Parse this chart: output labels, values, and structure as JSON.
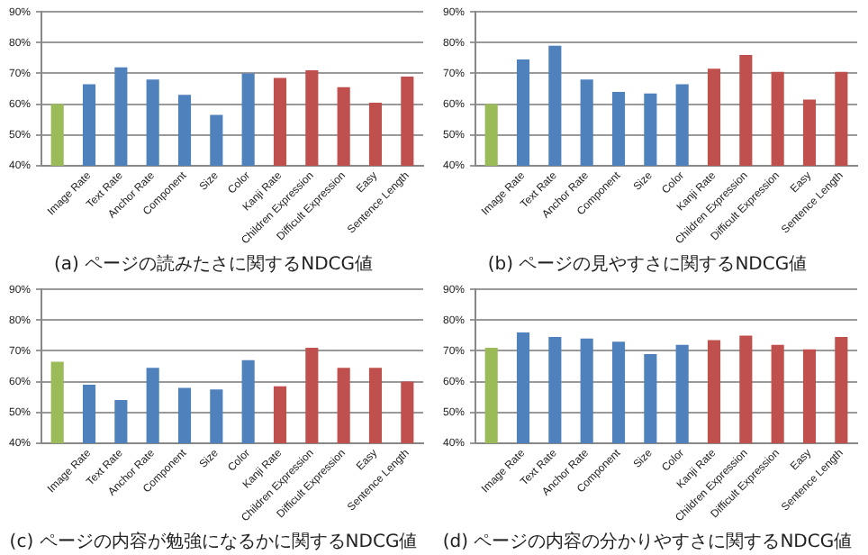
{
  "chart_data": [
    {
      "type": "bar",
      "title": "(a) ページの読みたさに関するNDCG値",
      "categories": [
        null,
        "Image Rate",
        "Text Rate",
        "Anchor Rate",
        "Component",
        "Size",
        "Color",
        "Kanji Rate",
        "Children Expression",
        "Difficult Expression",
        "Easy",
        "Sentence Length"
      ],
      "values": [
        60,
        66.5,
        72,
        68,
        63,
        56.5,
        70,
        68.5,
        71,
        65.5,
        60.5,
        69
      ],
      "colors": [
        "#9bbb59",
        "#4f81bd",
        "#4f81bd",
        "#4f81bd",
        "#4f81bd",
        "#4f81bd",
        "#4f81bd",
        "#c0504d",
        "#c0504d",
        "#c0504d",
        "#c0504d",
        "#c0504d"
      ],
      "ylim": [
        40,
        90
      ],
      "yticks": [
        {
          "value": 40,
          "label": "40%"
        },
        {
          "value": 50,
          "label": "50%"
        },
        {
          "value": 60,
          "label": "60%"
        },
        {
          "value": 70,
          "label": "70%"
        },
        {
          "value": 80,
          "label": "80%"
        },
        {
          "value": 90,
          "label": "90%"
        }
      ],
      "grid": "y",
      "legend": false
    },
    {
      "type": "bar",
      "title": "(b) ページの見やすさに関するNDCG値",
      "categories": [
        null,
        "Image Rate",
        "Text Rate",
        "Anchor Rate",
        "Component",
        "Size",
        "Color",
        "Kanji Rate",
        "Children Expression",
        "Difficult Expression",
        "Easy",
        "Sentence Length"
      ],
      "values": [
        60,
        74.5,
        79,
        68,
        64,
        63.5,
        66.5,
        71.5,
        76,
        70.5,
        61.5,
        70.5
      ],
      "colors": [
        "#9bbb59",
        "#4f81bd",
        "#4f81bd",
        "#4f81bd",
        "#4f81bd",
        "#4f81bd",
        "#4f81bd",
        "#c0504d",
        "#c0504d",
        "#c0504d",
        "#c0504d",
        "#c0504d"
      ],
      "ylim": [
        40,
        90
      ],
      "yticks": [
        {
          "value": 40,
          "label": "40%"
        },
        {
          "value": 50,
          "label": "50%"
        },
        {
          "value": 60,
          "label": "60%"
        },
        {
          "value": 70,
          "label": "70%"
        },
        {
          "value": 80,
          "label": "80%"
        },
        {
          "value": 90,
          "label": "90%"
        }
      ],
      "grid": "y",
      "legend": false
    },
    {
      "type": "bar",
      "title": "(c) ページの内容が勉強になるかに関するNDCG値",
      "categories": [
        null,
        "Image Rate",
        "Text Rate",
        "Anchor Rate",
        "Component",
        "Size",
        "Color",
        "Kanji Rate",
        "Children Expression",
        "Difficult Expression",
        "Easy",
        "Sentence Length"
      ],
      "values": [
        66.5,
        59,
        54,
        64.5,
        58,
        57.5,
        67,
        58.5,
        71,
        64.5,
        64.5,
        60
      ],
      "colors": [
        "#9bbb59",
        "#4f81bd",
        "#4f81bd",
        "#4f81bd",
        "#4f81bd",
        "#4f81bd",
        "#4f81bd",
        "#c0504d",
        "#c0504d",
        "#c0504d",
        "#c0504d",
        "#c0504d"
      ],
      "ylim": [
        40,
        90
      ],
      "yticks": [
        {
          "value": 40,
          "label": "40%"
        },
        {
          "value": 50,
          "label": "50%"
        },
        {
          "value": 60,
          "label": "60%"
        },
        {
          "value": 70,
          "label": "70%"
        },
        {
          "value": 80,
          "label": "80%"
        },
        {
          "value": 90,
          "label": "90%"
        }
      ],
      "grid": "y",
      "legend": false
    },
    {
      "type": "bar",
      "title": "(d) ページの内容の分かりやすさに関するNDCG値",
      "categories": [
        null,
        "Image Rate",
        "Text Rate",
        "Anchor Rate",
        "Component",
        "Size",
        "Color",
        "Kanji Rate",
        "Children Expression",
        "Difficult Expression",
        "Easy",
        "Sentence Length"
      ],
      "values": [
        71,
        76,
        74.5,
        74,
        73,
        69,
        72,
        73.5,
        75,
        72,
        70.5,
        74.5
      ],
      "colors": [
        "#9bbb59",
        "#4f81bd",
        "#4f81bd",
        "#4f81bd",
        "#4f81bd",
        "#4f81bd",
        "#4f81bd",
        "#c0504d",
        "#c0504d",
        "#c0504d",
        "#c0504d",
        "#c0504d"
      ],
      "ylim": [
        40,
        90
      ],
      "yticks": [
        {
          "value": 40,
          "label": "40%"
        },
        {
          "value": 50,
          "label": "50%"
        },
        {
          "value": 60,
          "label": "60%"
        },
        {
          "value": 70,
          "label": "70%"
        },
        {
          "value": 80,
          "label": "80%"
        },
        {
          "value": 90,
          "label": "90%"
        }
      ],
      "grid": "y",
      "legend": false
    }
  ]
}
